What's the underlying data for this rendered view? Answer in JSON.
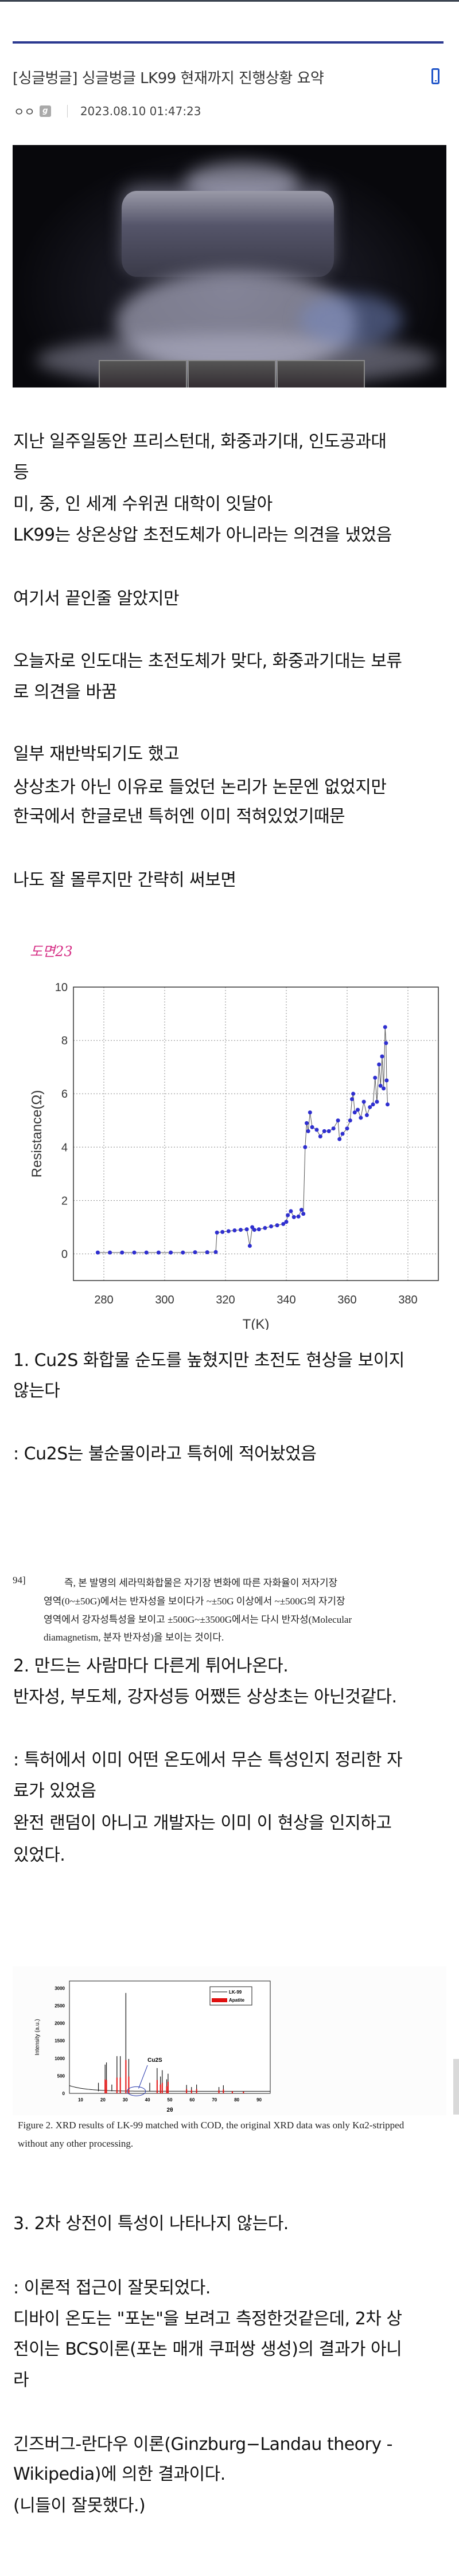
{
  "post": {
    "title": "[싱글벙글] 싱글벙글 LK99 현재까지 진행상황 요약",
    "author": "ㅇㅇ",
    "author_badge": "g",
    "datetime": "2023.08.10 01:47:23",
    "device_icon": "mobile-icon"
  },
  "body": {
    "intro": [
      "지난 일주일동안 프리스턴대, 화중과기대, 인도공과대",
      "등",
      "미, 중, 인 세계 수위권 대학이 잇달아",
      "LK99는 상온상압 초전도체가 아니라는 의견을 냈었음",
      "여기서 끝인줄 알았지만",
      "오늘자로 인도대는 초전도체가 맞다, 화중과기대는 보류",
      "로 의견을 바꿈",
      "일부 재반박되기도 했고",
      "상상초가 아닌 이유로 들었던 논리가 논문엔 없었지만",
      "한국에서 한글로낸 특허엔 이미 적혀있었기때문",
      "나도 잘 몰루지만 간략히 써보면"
    ],
    "figure_label": "도면23",
    "point1": [
      "1. Cu2S 화합물 순도를 높혔지만 초전도 현상을 보이지",
      "않는다",
      ": Cu2S는 불순물이라고 특허에 적어놨었음"
    ],
    "patent_excerpt": {
      "number": "94]",
      "lines": [
        "즉, 본 발명의 세라믹화합물은 자기장 변화에 따른 자화율이 저자기장",
        "영역(0~±50G)에서는 반자성을 보이다가 ~±50G 이상에서 ~±500G의 자기장",
        "영역에서 강자성특성을 보이고 ±500G~±3500G에서는 다시 반자성(Molecular",
        "diamagnetism, 분자 반자성)을 보이는 것이다."
      ]
    },
    "point2": [
      "2. 만드는 사람마다 다른게 튀어나온다.",
      "반자성, 부도체, 강자성등 어쨌든 상상초는 아닌것같다.",
      ": 특허에서 이미 어떤 온도에서 무슨 특성인지 정리한 자",
      "료가 있었음",
      "완전 랜덤이 아니고 개발자는 이미 이 현상을 인지하고",
      "있었다."
    ],
    "figure2_caption": [
      "Figure 2. XRD results of LK-99 matched with COD, the original XRD data was only Kα2-stripped",
      "without any other processing."
    ],
    "point3": [
      "3. 2차 상전이 특성이 나타나지 않는다.",
      ": 이론적 접근이 잘못되었다.",
      "디바이 온도는 \"포논\"을 보려고 측정한것같은데, 2차 상",
      "전이는 BCS이론(포논 매개 쿠퍼쌍 생성)의 결과가 아니",
      "라",
      "긴즈버그-란다우 이론(Ginzburg−Landau theory -",
      "Wikipedia)에 의한 결과이다.",
      "(니들이 잘못했다.)"
    ]
  },
  "colors": {
    "accent": "#2b3990",
    "figure_label": "#d62f86",
    "series_point": "#2f2fd0",
    "apatite": "#e01010"
  },
  "chart_data": [
    {
      "type": "scatter",
      "xlabel": "T(K)",
      "ylabel": "Resistance(Ω)",
      "xlim": [
        270,
        390
      ],
      "ylim": [
        -1,
        10
      ],
      "xticks": [
        280,
        300,
        320,
        340,
        360,
        380
      ],
      "yticks": [
        0,
        2,
        4,
        6,
        8,
        10
      ],
      "grid": true,
      "points": [
        [
          278,
          0.05
        ],
        [
          282,
          0.05
        ],
        [
          286,
          0.05
        ],
        [
          290,
          0.05
        ],
        [
          294,
          0.05
        ],
        [
          298,
          0.05
        ],
        [
          302,
          0.05
        ],
        [
          306,
          0.05
        ],
        [
          310,
          0.06
        ],
        [
          314,
          0.06
        ],
        [
          316.8,
          0.07
        ],
        [
          317.2,
          0.8
        ],
        [
          319,
          0.82
        ],
        [
          321,
          0.85
        ],
        [
          323,
          0.88
        ],
        [
          325,
          0.9
        ],
        [
          327,
          0.92
        ],
        [
          328,
          0.3
        ],
        [
          328.8,
          1.0
        ],
        [
          329.5,
          0.9
        ],
        [
          331,
          0.92
        ],
        [
          333,
          0.97
        ],
        [
          335,
          1.03
        ],
        [
          337,
          1.07
        ],
        [
          339,
          1.12
        ],
        [
          340,
          1.2
        ],
        [
          340.5,
          1.45
        ],
        [
          341.5,
          1.6
        ],
        [
          342.5,
          1.38
        ],
        [
          344,
          1.4
        ],
        [
          345,
          1.65
        ],
        [
          345.6,
          1.5
        ],
        [
          346.2,
          4.0
        ],
        [
          346.7,
          4.9
        ],
        [
          347.2,
          4.6
        ],
        [
          347.8,
          5.3
        ],
        [
          348.5,
          4.75
        ],
        [
          350,
          4.65
        ],
        [
          351.2,
          4.4
        ],
        [
          352.5,
          4.6
        ],
        [
          354,
          4.6
        ],
        [
          355.5,
          4.7
        ],
        [
          357,
          5.0
        ],
        [
          357.5,
          4.3
        ],
        [
          358.5,
          4.5
        ],
        [
          360,
          4.7
        ],
        [
          361,
          5.0
        ],
        [
          361.6,
          5.8
        ],
        [
          362,
          6.0
        ],
        [
          362.5,
          5.3
        ],
        [
          363.5,
          5.4
        ],
        [
          364.5,
          5.1
        ],
        [
          365.5,
          5.7
        ],
        [
          366.5,
          5.2
        ],
        [
          367.5,
          5.5
        ],
        [
          368.5,
          5.6
        ],
        [
          369.2,
          6.6
        ],
        [
          369.8,
          5.7
        ],
        [
          370.5,
          7.1
        ],
        [
          371,
          6.3
        ],
        [
          371.5,
          7.4
        ],
        [
          372,
          6.2
        ],
        [
          372.5,
          8.5
        ],
        [
          372.8,
          7.9
        ],
        [
          373,
          6.5
        ],
        [
          373.3,
          5.6
        ]
      ]
    },
    {
      "type": "line",
      "xlabel": "2θ",
      "ylabel": "Intensity (a.u.)",
      "xlim": [
        5,
        95
      ],
      "ylim": [
        0,
        3200
      ],
      "xticks": [
        10,
        20,
        30,
        40,
        50,
        60,
        70,
        80,
        90
      ],
      "yticks": [
        0,
        500,
        1000,
        1500,
        2000,
        2500,
        3000
      ],
      "legend": "top-right",
      "annotation": "Cu2S",
      "series": [
        {
          "name": "LK-99",
          "peaks": [
            [
              18,
              300
            ],
            [
              21,
              820
            ],
            [
              21.6,
              880
            ],
            [
              24,
              250
            ],
            [
              26.3,
              1060
            ],
            [
              27.8,
              1060
            ],
            [
              30.3,
              2860
            ],
            [
              31.6,
              980
            ],
            [
              41,
              300
            ],
            [
              44.3,
              720
            ],
            [
              45.8,
              480
            ],
            [
              46.6,
              660
            ],
            [
              48.6,
              400
            ],
            [
              49.2,
              560
            ],
            [
              57.5,
              240
            ],
            [
              59.7,
              180
            ],
            [
              62,
              250
            ],
            [
              72,
              180
            ],
            [
              74,
              230
            ]
          ]
        },
        {
          "name": "Apatite",
          "peaks": [
            [
              21,
              400
            ],
            [
              21.6,
              380
            ],
            [
              26.3,
              450
            ],
            [
              27.8,
              450
            ],
            [
              30.3,
              950
            ],
            [
              31.6,
              480
            ],
            [
              44.3,
              380
            ],
            [
              45.8,
              250
            ],
            [
              46.6,
              300
            ],
            [
              48.6,
              200
            ],
            [
              49.2,
              330
            ],
            [
              57.5,
              120
            ],
            [
              59.7,
              100
            ],
            [
              62,
              120
            ],
            [
              72,
              90
            ],
            [
              74,
              110
            ],
            [
              78,
              60
            ],
            [
              83,
              50
            ]
          ]
        }
      ]
    }
  ]
}
